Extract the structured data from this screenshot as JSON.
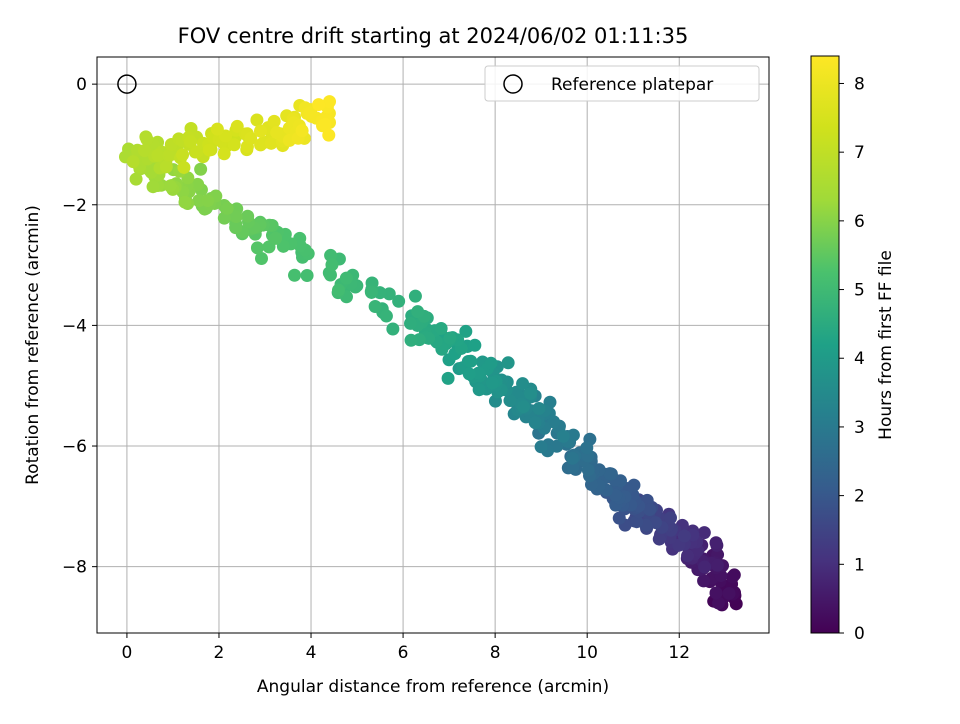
{
  "chart_data": {
    "type": "scatter",
    "title": "FOV centre drift starting at 2024/06/02 01:11:35",
    "xlabel": "Angular distance from reference (arcmin)",
    "ylabel": "Rotation from reference (arcmin)",
    "xlim": [
      -0.65,
      13.95
    ],
    "ylim": [
      -9.1,
      0.45
    ],
    "xticks": [
      0,
      2,
      4,
      6,
      8,
      10,
      12
    ],
    "yticks": [
      0,
      -2,
      -4,
      -6,
      -8
    ],
    "xtick_labels": [
      "0",
      "2",
      "4",
      "6",
      "8",
      "10",
      "12"
    ],
    "ytick_labels": [
      "0",
      "−2",
      "−4",
      "−6",
      "−8"
    ],
    "grid": true,
    "legend_position": "top-right",
    "colormap": "viridis",
    "colorbar": {
      "label": "Hours from first FF file",
      "range": [
        0,
        8.4
      ],
      "ticks": [
        0,
        1,
        2,
        3,
        4,
        5,
        6,
        7,
        8
      ],
      "tick_labels": [
        "0",
        "1",
        "2",
        "3",
        "4",
        "5",
        "6",
        "7",
        "8"
      ]
    },
    "reference": {
      "label": "Reference platepar",
      "x": 0,
      "y": 0
    },
    "path_keypoints": [
      {
        "x": 13.2,
        "y": -8.6,
        "t": 0.0
      },
      {
        "x": 12.8,
        "y": -8.1,
        "t": 0.4
      },
      {
        "x": 12.4,
        "y": -7.7,
        "t": 0.8
      },
      {
        "x": 11.7,
        "y": -7.4,
        "t": 1.3
      },
      {
        "x": 10.8,
        "y": -6.9,
        "t": 2.0
      },
      {
        "x": 9.8,
        "y": -6.1,
        "t": 2.7
      },
      {
        "x": 8.6,
        "y": -5.3,
        "t": 3.4
      },
      {
        "x": 7.5,
        "y": -4.6,
        "t": 4.1
      },
      {
        "x": 6.3,
        "y": -3.9,
        "t": 4.6
      },
      {
        "x": 4.5,
        "y": -3.2,
        "t": 5.0
      },
      {
        "x": 3.0,
        "y": -2.5,
        "t": 5.4
      },
      {
        "x": 1.8,
        "y": -1.9,
        "t": 5.9
      },
      {
        "x": 0.6,
        "y": -1.6,
        "t": 6.3
      },
      {
        "x": 0.2,
        "y": -1.2,
        "t": 6.6
      },
      {
        "x": 1.2,
        "y": -1.1,
        "t": 7.0
      },
      {
        "x": 2.4,
        "y": -0.9,
        "t": 7.5
      },
      {
        "x": 3.6,
        "y": -0.7,
        "t": 7.9
      },
      {
        "x": 4.4,
        "y": -0.5,
        "t": 8.4
      }
    ],
    "point_count": 520,
    "jitter": [
      0.18,
      0.14
    ]
  }
}
